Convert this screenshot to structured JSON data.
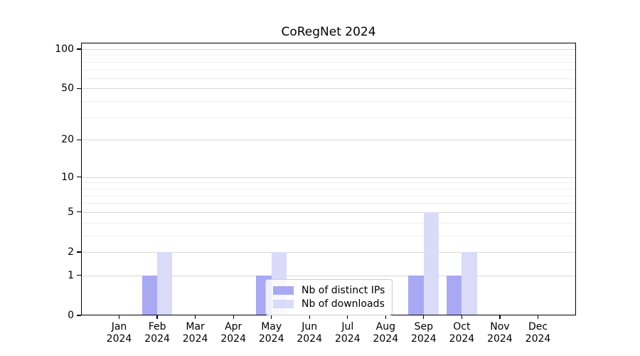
{
  "title": "CoRegNet 2024",
  "colors": {
    "background": "#ffffff",
    "spine": "#000000",
    "text": "#000000",
    "grid_major": "#d8d8d8",
    "grid_minor": "#f0f0f0",
    "legend_border": "#cccccc",
    "series_distinct_ips": "#a9a9f3",
    "series_downloads": "#dadaf9"
  },
  "chart_data": {
    "type": "bar",
    "title": "CoRegNet 2024",
    "categories": [
      "Jan",
      "Feb",
      "Mar",
      "Apr",
      "May",
      "Jun",
      "Jul",
      "Aug",
      "Sep",
      "Oct",
      "Nov",
      "Dec"
    ],
    "category_year": "2024",
    "series": [
      {
        "name": "Nb of distinct IPs",
        "color": "#a9a9f3",
        "values": [
          0,
          1,
          0,
          0,
          1,
          0,
          0,
          0,
          1,
          1,
          0,
          0
        ]
      },
      {
        "name": "Nb of downloads",
        "color": "#dadaf9",
        "values": [
          0,
          2,
          0,
          0,
          2,
          0,
          0,
          0,
          5,
          2,
          0,
          0
        ]
      }
    ],
    "xlabel": "",
    "ylabel": "",
    "yscale": "log1p",
    "ylim": [
      0,
      100
    ],
    "yticks": [
      0,
      1,
      2,
      5,
      10,
      20,
      50,
      100
    ],
    "yticks_minor": [
      3,
      4,
      6,
      7,
      8,
      9,
      30,
      40,
      60,
      70,
      80,
      90
    ],
    "grid": true,
    "legend_position": "lower center"
  }
}
